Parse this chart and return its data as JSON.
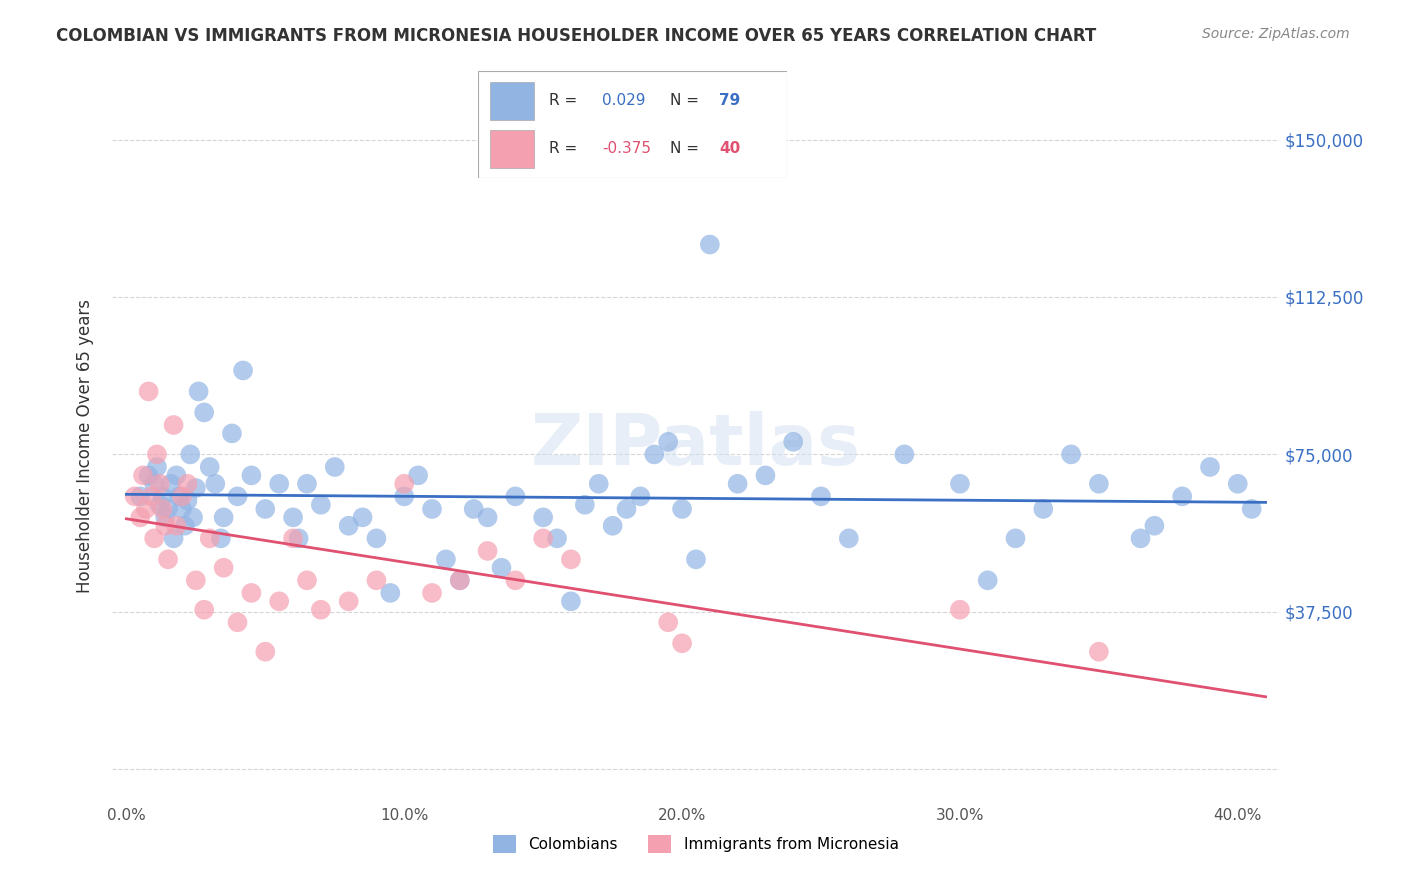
{
  "title": "COLOMBIAN VS IMMIGRANTS FROM MICRONESIA HOUSEHOLDER INCOME OVER 65 YEARS CORRELATION CHART",
  "source": "Source: ZipAtlas.com",
  "ylabel": "Householder Income Over 65 years",
  "xlabel_ticks": [
    "0.0%",
    "10.0%",
    "20.0%",
    "30.0%",
    "40.0%"
  ],
  "xtick_values": [
    0.0,
    10.0,
    20.0,
    30.0,
    40.0
  ],
  "ytick_values": [
    0,
    37500,
    75000,
    112500,
    150000
  ],
  "ytick_labels": [
    "",
    "$37,500",
    "$75,000",
    "$112,500",
    "$150,000"
  ],
  "blue_R": 0.029,
  "blue_N": 79,
  "pink_R": -0.375,
  "pink_N": 40,
  "blue_color": "#92b4e3",
  "pink_color": "#f4a0b0",
  "blue_line_color": "#3a6fc4",
  "pink_line_color": "#e05070",
  "watermark": "ZIPatlas",
  "blue_points_x": [
    0.5,
    0.8,
    1.0,
    1.1,
    1.2,
    1.3,
    1.4,
    1.5,
    1.6,
    1.7,
    1.8,
    1.9,
    2.0,
    2.1,
    2.2,
    2.3,
    2.4,
    2.5,
    2.6,
    2.8,
    3.0,
    3.2,
    3.4,
    3.5,
    3.8,
    4.0,
    4.2,
    4.5,
    5.0,
    5.5,
    6.0,
    6.2,
    6.5,
    7.0,
    7.5,
    8.0,
    8.5,
    9.0,
    9.5,
    10.0,
    10.5,
    11.0,
    11.5,
    12.0,
    12.5,
    13.0,
    13.5,
    14.0,
    15.0,
    15.5,
    16.0,
    16.5,
    17.0,
    17.5,
    18.0,
    18.5,
    19.0,
    19.5,
    20.0,
    20.5,
    21.0,
    22.0,
    23.0,
    24.0,
    25.0,
    26.0,
    28.0,
    30.0,
    31.0,
    32.0,
    33.0,
    34.0,
    35.0,
    36.5,
    37.0,
    38.0,
    39.0,
    40.0,
    40.5
  ],
  "blue_points_y": [
    65000,
    70000,
    68000,
    72000,
    63000,
    65000,
    60000,
    62000,
    68000,
    55000,
    70000,
    65000,
    62000,
    58000,
    64000,
    75000,
    60000,
    67000,
    90000,
    85000,
    72000,
    68000,
    55000,
    60000,
    80000,
    65000,
    95000,
    70000,
    62000,
    68000,
    60000,
    55000,
    68000,
    63000,
    72000,
    58000,
    60000,
    55000,
    42000,
    65000,
    70000,
    62000,
    50000,
    45000,
    62000,
    60000,
    48000,
    65000,
    60000,
    55000,
    40000,
    63000,
    68000,
    58000,
    62000,
    65000,
    75000,
    78000,
    62000,
    50000,
    125000,
    68000,
    70000,
    78000,
    65000,
    55000,
    75000,
    68000,
    45000,
    55000,
    62000,
    75000,
    68000,
    55000,
    58000,
    65000,
    72000,
    68000,
    62000
  ],
  "pink_points_x": [
    0.3,
    0.5,
    0.6,
    0.7,
    0.8,
    0.9,
    1.0,
    1.1,
    1.2,
    1.3,
    1.4,
    1.5,
    1.7,
    1.8,
    2.0,
    2.2,
    2.5,
    2.8,
    3.0,
    3.5,
    4.0,
    4.5,
    5.0,
    5.5,
    6.0,
    6.5,
    7.0,
    8.0,
    9.0,
    10.0,
    11.0,
    12.0,
    13.0,
    14.0,
    15.0,
    16.0,
    19.5,
    20.0,
    30.0,
    35.0
  ],
  "pink_points_y": [
    65000,
    60000,
    70000,
    62000,
    90000,
    65000,
    55000,
    75000,
    68000,
    62000,
    58000,
    50000,
    82000,
    58000,
    65000,
    68000,
    45000,
    38000,
    55000,
    48000,
    35000,
    42000,
    28000,
    40000,
    55000,
    45000,
    38000,
    40000,
    45000,
    68000,
    42000,
    45000,
    52000,
    45000,
    55000,
    50000,
    35000,
    30000,
    38000,
    28000
  ]
}
